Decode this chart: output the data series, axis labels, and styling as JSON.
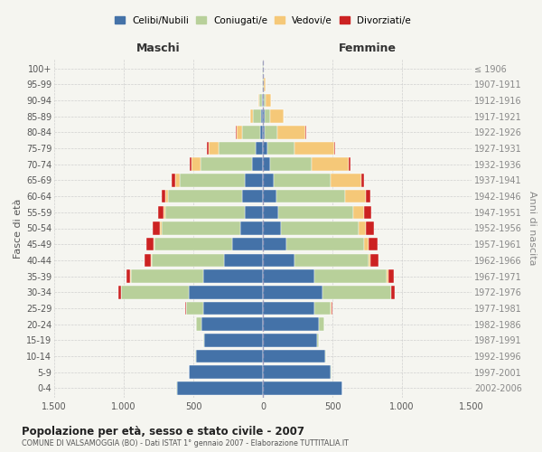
{
  "age_groups": [
    "0-4",
    "5-9",
    "10-14",
    "15-19",
    "20-24",
    "25-29",
    "30-34",
    "35-39",
    "40-44",
    "45-49",
    "50-54",
    "55-59",
    "60-64",
    "65-69",
    "70-74",
    "75-79",
    "80-84",
    "85-89",
    "90-94",
    "95-99",
    "100+"
  ],
  "birth_years": [
    "2002-2006",
    "1997-2001",
    "1992-1996",
    "1987-1991",
    "1982-1986",
    "1977-1981",
    "1972-1976",
    "1967-1971",
    "1962-1966",
    "1957-1961",
    "1952-1956",
    "1947-1951",
    "1942-1946",
    "1937-1941",
    "1932-1936",
    "1927-1931",
    "1922-1926",
    "1917-1921",
    "1912-1916",
    "1907-1911",
    "≤ 1906"
  ],
  "maschi": {
    "celibi": [
      620,
      530,
      480,
      420,
      440,
      430,
      530,
      430,
      280,
      220,
      160,
      130,
      150,
      130,
      80,
      50,
      20,
      10,
      5,
      2,
      2
    ],
    "coniugati": [
      2,
      2,
      5,
      10,
      40,
      120,
      490,
      520,
      520,
      560,
      570,
      570,
      530,
      470,
      370,
      270,
      130,
      60,
      20,
      5,
      3
    ],
    "vedovi": [
      0,
      0,
      0,
      0,
      1,
      2,
      2,
      3,
      5,
      8,
      10,
      15,
      20,
      30,
      60,
      70,
      40,
      20,
      10,
      2,
      1
    ],
    "divorziati": [
      0,
      0,
      0,
      0,
      2,
      5,
      20,
      30,
      45,
      50,
      50,
      40,
      30,
      25,
      15,
      10,
      5,
      2,
      0,
      0,
      0
    ]
  },
  "femmine": {
    "nubili": [
      570,
      490,
      450,
      390,
      400,
      370,
      430,
      370,
      230,
      170,
      130,
      110,
      100,
      80,
      50,
      30,
      15,
      10,
      5,
      2,
      2
    ],
    "coniugate": [
      2,
      2,
      5,
      10,
      40,
      120,
      490,
      520,
      530,
      560,
      560,
      540,
      490,
      410,
      300,
      200,
      90,
      40,
      15,
      5,
      2
    ],
    "vedove": [
      0,
      0,
      0,
      0,
      1,
      3,
      5,
      10,
      15,
      30,
      50,
      80,
      150,
      220,
      270,
      280,
      200,
      100,
      40,
      10,
      3
    ],
    "divorziate": [
      0,
      0,
      0,
      0,
      2,
      5,
      20,
      40,
      55,
      65,
      60,
      50,
      30,
      20,
      12,
      8,
      5,
      2,
      1,
      0,
      0
    ]
  },
  "colors": {
    "celibi": "#4472a8",
    "coniugati": "#b8d09a",
    "vedovi": "#f5c878",
    "divorziati": "#cc2222"
  },
  "title": "Popolazione per età, sesso e stato civile - 2007",
  "subtitle": "COMUNE DI VALSAMOGGIA (BO) - Dati ISTAT 1° gennaio 2007 - Elaborazione TUTTITALIA.IT",
  "ylabel_left": "Fasce di età",
  "ylabel_right": "Anni di nascita",
  "xlabel_left": "Maschi",
  "xlabel_right": "Femmine",
  "xlim": 1500,
  "background_color": "#f5f5f0",
  "plot_bg": "#f5f5f0",
  "grid_color": "#cccccc"
}
